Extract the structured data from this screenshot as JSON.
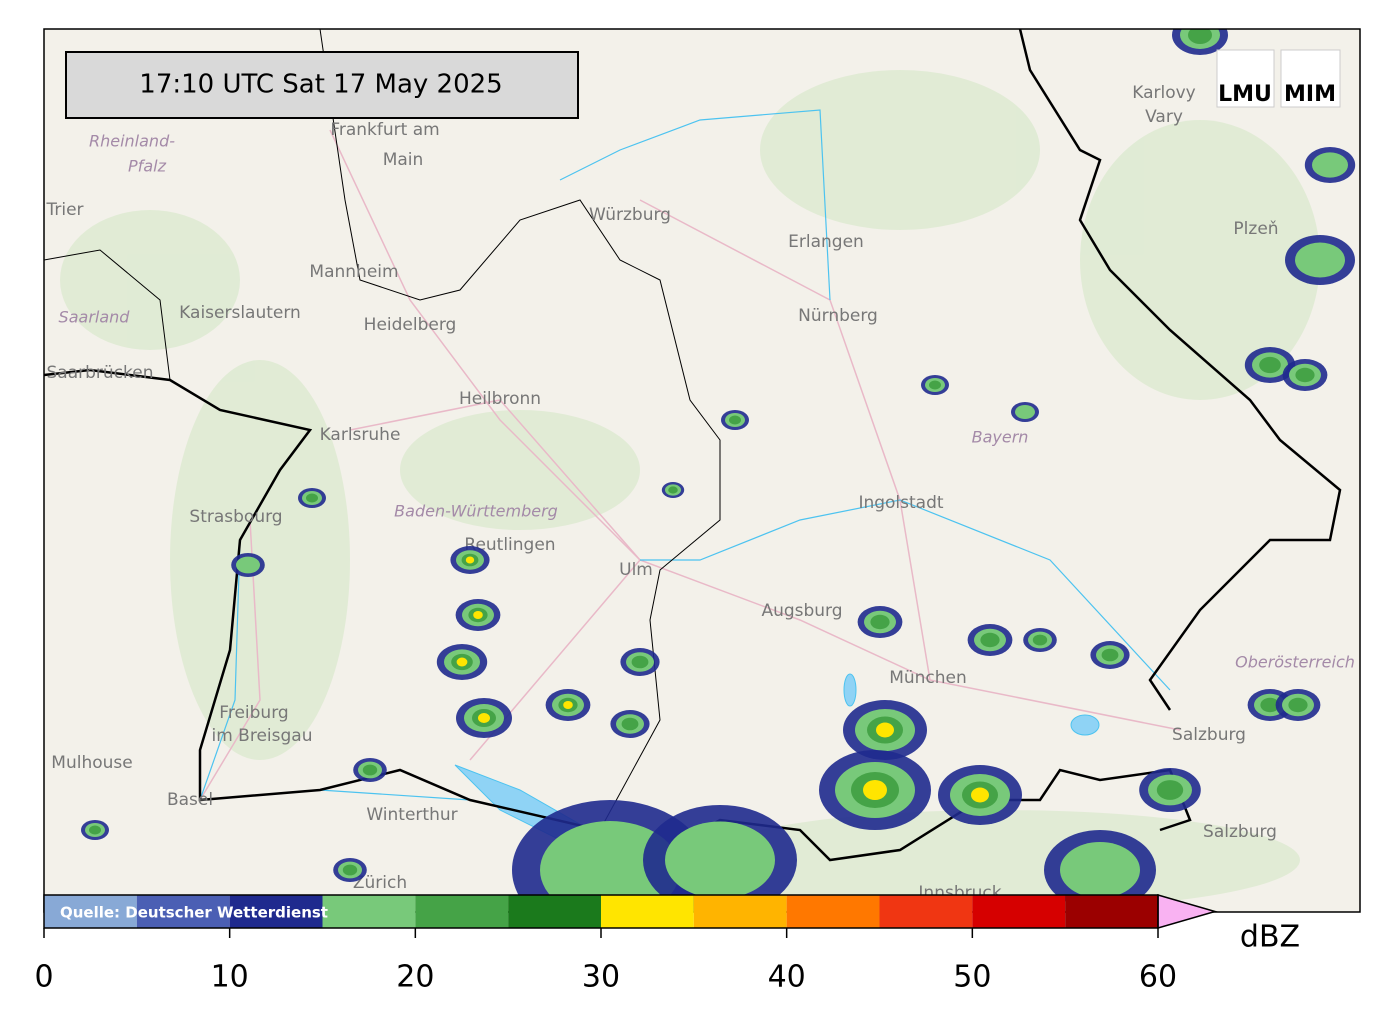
{
  "header": {
    "timestamp": "17:10 UTC  Sat 17 May 2025",
    "logos": [
      "LMU",
      "MIM"
    ]
  },
  "map": {
    "places": [
      "Frankfurt am",
      "Main",
      "Würzburg",
      "Erlangen",
      "Nürnberg",
      "Mannheim",
      "Kaiserslautern",
      "Heidelberg",
      "Trier",
      "Saarbrücken",
      "Heilbronn",
      "Karlsruhe",
      "Strasbourg",
      "Reutlingen",
      "Ulm",
      "Augsburg",
      "Ingolstadt",
      "München",
      "Freiburg",
      "im Breisgau",
      "Mulhouse",
      "Basel",
      "Winterthur",
      "Zürich",
      "Salzburg",
      "Salzburg",
      "Karlovy",
      "Vary",
      "Plzeň",
      "Innsbruck"
    ],
    "regions": [
      "Rheinland-",
      "Pfalz",
      "Saarland",
      "Baden-Württemberg",
      "Bayern",
      "Oberösterreich"
    ]
  },
  "colorbar": {
    "bounds": [
      0,
      5,
      10,
      15,
      20,
      25,
      30,
      35,
      40,
      45,
      50,
      55,
      60
    ],
    "colors": [
      "#88a9d6",
      "#4b5fb4",
      "#1f2a8e",
      "#78c97a",
      "#45a347",
      "#1b7a1c",
      "#ffe500",
      "#ffb400",
      "#ff7800",
      "#f03612",
      "#d60000",
      "#9b0000"
    ],
    "extend_color": "#f9b2f2",
    "xlim": [
      0,
      60
    ],
    "ticks": [
      0,
      10,
      20,
      30,
      40,
      50,
      60
    ],
    "label": "dBZ",
    "source": "Quelle: Deutscher Wetterdienst"
  }
}
